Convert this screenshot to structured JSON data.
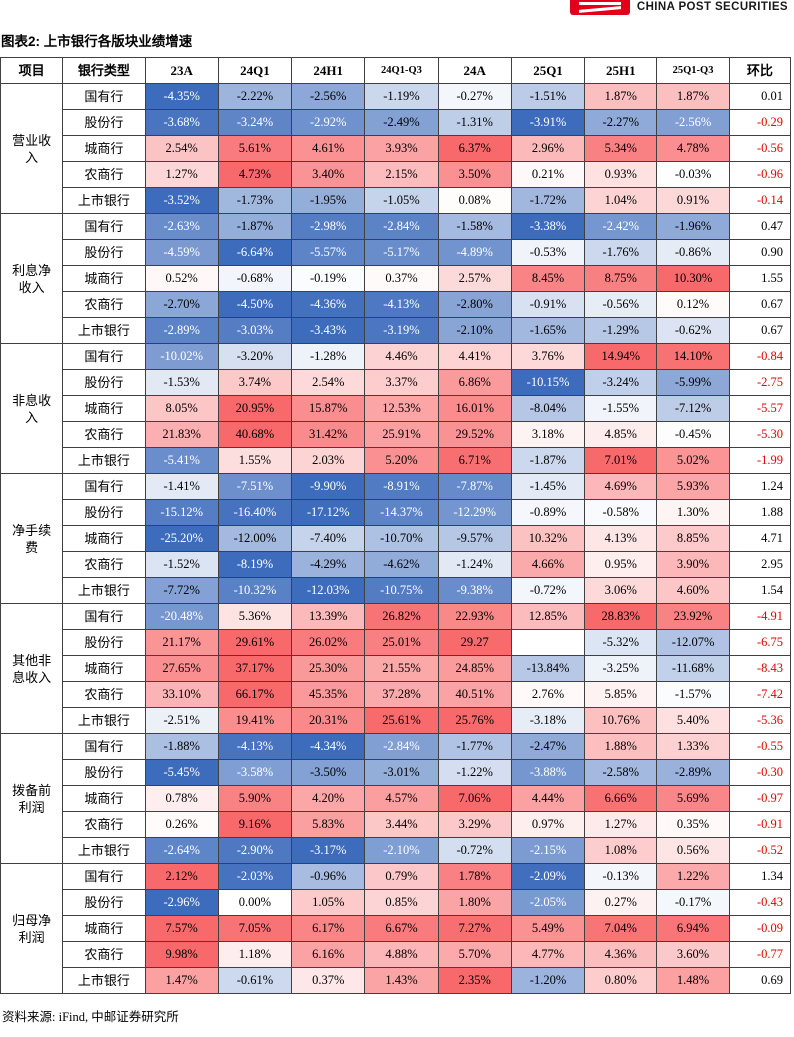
{
  "brand": {
    "name": "CHINA POST SECURITIES"
  },
  "title": "图表2: 上市银行各版块业绩增速",
  "source": "资料来源: iFind, 中邮证券研究所",
  "colors": {
    "brand_red": "#E3001B",
    "heat_positive": "#F8696B",
    "heat_negative": "#3E6CBC",
    "qoq_negative_text": "#E60000",
    "border": "#404040"
  },
  "table": {
    "columns": [
      "项目",
      "银行类型",
      "23A",
      "24Q1",
      "24H1",
      "24Q1-Q3",
      "24A",
      "25Q1",
      "25H1",
      "25Q1-Q3",
      "环比"
    ],
    "groups": [
      {
        "name": "营业收入",
        "rows": [
          {
            "bank": "国有行",
            "cells": [
              "-4.35%",
              "-2.22%",
              "-2.56%",
              "-1.19%",
              "-0.27%",
              "-1.51%",
              "1.87%",
              "1.87%"
            ],
            "qoq": "0.01"
          },
          {
            "bank": "股份行",
            "cells": [
              "-3.68%",
              "-3.24%",
              "-2.92%",
              "-2.49%",
              "-1.31%",
              "-3.91%",
              "-2.27%",
              "-2.56%"
            ],
            "qoq": "-0.29"
          },
          {
            "bank": "城商行",
            "cells": [
              "2.54%",
              "5.61%",
              "4.61%",
              "3.93%",
              "6.37%",
              "2.96%",
              "5.34%",
              "4.78%"
            ],
            "qoq": "-0.56"
          },
          {
            "bank": "农商行",
            "cells": [
              "1.27%",
              "4.73%",
              "3.40%",
              "2.15%",
              "3.50%",
              "0.21%",
              "0.93%",
              "-0.03%"
            ],
            "qoq": "-0.96"
          },
          {
            "bank": "上市银行",
            "cells": [
              "-3.52%",
              "-1.73%",
              "-1.95%",
              "-1.05%",
              "0.08%",
              "-1.72%",
              "1.04%",
              "0.91%"
            ],
            "qoq": "-0.14"
          }
        ]
      },
      {
        "name": "利息净收入",
        "rows": [
          {
            "bank": "国有行",
            "cells": [
              "-2.63%",
              "-1.87%",
              "-2.98%",
              "-2.84%",
              "-1.58%",
              "-3.38%",
              "-2.42%",
              "-1.96%"
            ],
            "qoq": "0.47"
          },
          {
            "bank": "股份行",
            "cells": [
              "-4.59%",
              "-6.64%",
              "-5.57%",
              "-5.17%",
              "-4.89%",
              "-0.53%",
              "-1.76%",
              "-0.86%"
            ],
            "qoq": "0.90"
          },
          {
            "bank": "城商行",
            "cells": [
              "0.52%",
              "-0.68%",
              "-0.19%",
              "0.37%",
              "2.57%",
              "8.45%",
              "8.75%",
              "10.30%"
            ],
            "qoq": "1.55"
          },
          {
            "bank": "农商行",
            "cells": [
              "-2.70%",
              "-4.50%",
              "-4.36%",
              "-4.13%",
              "-2.80%",
              "-0.91%",
              "-0.56%",
              "0.12%"
            ],
            "qoq": "0.67"
          },
          {
            "bank": "上市银行",
            "cells": [
              "-2.89%",
              "-3.03%",
              "-3.43%",
              "-3.19%",
              "-2.10%",
              "-1.65%",
              "-1.29%",
              "-0.62%"
            ],
            "qoq": "0.67"
          }
        ]
      },
      {
        "name": "非息收入",
        "rows": [
          {
            "bank": "国有行",
            "cells": [
              "-10.02%",
              "-3.20%",
              "-1.28%",
              "4.46%",
              "4.41%",
              "3.76%",
              "14.94%",
              "14.10%"
            ],
            "qoq": "-0.84"
          },
          {
            "bank": "股份行",
            "cells": [
              "-1.53%",
              "3.74%",
              "2.54%",
              "3.37%",
              "6.86%",
              "-10.15%",
              "-3.24%",
              "-5.99%"
            ],
            "qoq": "-2.75"
          },
          {
            "bank": "城商行",
            "cells": [
              "8.05%",
              "20.95%",
              "15.87%",
              "12.53%",
              "16.01%",
              "-8.04%",
              "-1.55%",
              "-7.12%"
            ],
            "qoq": "-5.57"
          },
          {
            "bank": "农商行",
            "cells": [
              "21.83%",
              "40.68%",
              "31.42%",
              "25.91%",
              "29.52%",
              "3.18%",
              "4.85%",
              "-0.45%"
            ],
            "qoq": "-5.30"
          },
          {
            "bank": "上市银行",
            "cells": [
              "-5.41%",
              "1.55%",
              "2.03%",
              "5.20%",
              "6.71%",
              "-1.87%",
              "7.01%",
              "5.02%"
            ],
            "qoq": "-1.99"
          }
        ]
      },
      {
        "name": "净手续费",
        "rows": [
          {
            "bank": "国有行",
            "cells": [
              "-1.41%",
              "-7.51%",
              "-9.90%",
              "-8.91%",
              "-7.87%",
              "-1.45%",
              "4.69%",
              "5.93%"
            ],
            "qoq": "1.24"
          },
          {
            "bank": "股份行",
            "cells": [
              "-15.12%",
              "-16.40%",
              "-17.12%",
              "-14.37%",
              "-12.29%",
              "-0.89%",
              "-0.58%",
              "1.30%"
            ],
            "qoq": "1.88"
          },
          {
            "bank": "城商行",
            "cells": [
              "-25.20%",
              "-12.00%",
              "-7.40%",
              "-10.70%",
              "-9.57%",
              "10.32%",
              "4.13%",
              "8.85%"
            ],
            "qoq": "4.71"
          },
          {
            "bank": "农商行",
            "cells": [
              "-1.52%",
              "-8.19%",
              "-4.29%",
              "-4.62%",
              "-1.24%",
              "4.66%",
              "0.95%",
              "3.90%"
            ],
            "qoq": "2.95"
          },
          {
            "bank": "上市银行",
            "cells": [
              "-7.72%",
              "-10.32%",
              "-12.03%",
              "-10.75%",
              "-9.38%",
              "-0.72%",
              "3.06%",
              "4.60%"
            ],
            "qoq": "1.54"
          }
        ]
      },
      {
        "name": "其他非息收入",
        "rows": [
          {
            "bank": "国有行",
            "cells": [
              "-20.48%",
              "5.36%",
              "13.39%",
              "26.82%",
              "22.93%",
              "12.85%",
              "28.83%",
              "23.92%"
            ],
            "qoq": "-4.91"
          },
          {
            "bank": "股份行",
            "cells": [
              "21.17%",
              "29.61%",
              "26.02%",
              "25.01%",
              "29.27",
              "",
              "-5.32%",
              "-12.07%"
            ],
            "qoq": "-6.75"
          },
          {
            "bank": "城商行",
            "cells": [
              "27.65%",
              "37.17%",
              "25.30%",
              "21.55%",
              "24.85%",
              "-13.84%",
              "-3.25%",
              "-11.68%"
            ],
            "qoq": "-8.43"
          },
          {
            "bank": "农商行",
            "cells": [
              "33.10%",
              "66.17%",
              "45.35%",
              "37.28%",
              "40.51%",
              "2.76%",
              "5.85%",
              "-1.57%"
            ],
            "qoq": "-7.42"
          },
          {
            "bank": "上市银行",
            "cells": [
              "-2.51%",
              "19.41%",
              "20.31%",
              "25.61%",
              "25.76%",
              "-3.18%",
              "10.76%",
              "5.40%"
            ],
            "qoq": "-5.36"
          }
        ]
      },
      {
        "name": "拨备前利润",
        "rows": [
          {
            "bank": "国有行",
            "cells": [
              "-1.88%",
              "-4.13%",
              "-4.34%",
              "-2.84%",
              "-1.77%",
              "-2.47%",
              "1.88%",
              "1.33%"
            ],
            "qoq": "-0.55"
          },
          {
            "bank": "股份行",
            "cells": [
              "-5.45%",
              "-3.58%",
              "-3.50%",
              "-3.01%",
              "-1.22%",
              "-3.88%",
              "-2.58%",
              "-2.89%"
            ],
            "qoq": "-0.30"
          },
          {
            "bank": "城商行",
            "cells": [
              "0.78%",
              "5.90%",
              "4.20%",
              "4.57%",
              "7.06%",
              "4.44%",
              "6.66%",
              "5.69%"
            ],
            "qoq": "-0.97"
          },
          {
            "bank": "农商行",
            "cells": [
              "0.26%",
              "9.16%",
              "5.83%",
              "3.44%",
              "3.29%",
              "0.97%",
              "1.27%",
              "0.35%"
            ],
            "qoq": "-0.91"
          },
          {
            "bank": "上市银行",
            "cells": [
              "-2.64%",
              "-2.90%",
              "-3.17%",
              "-2.10%",
              "-0.72%",
              "-2.15%",
              "1.08%",
              "0.56%"
            ],
            "qoq": "-0.52"
          }
        ]
      },
      {
        "name": "归母净利润",
        "rows": [
          {
            "bank": "国有行",
            "cells": [
              "2.12%",
              "-2.03%",
              "-0.96%",
              "0.79%",
              "1.78%",
              "-2.09%",
              "-0.13%",
              "1.22%"
            ],
            "qoq": "1.34"
          },
          {
            "bank": "股份行",
            "cells": [
              "-2.96%",
              "0.00%",
              "1.05%",
              "0.85%",
              "1.80%",
              "-2.05%",
              "0.27%",
              "-0.17%"
            ],
            "qoq": "-0.43"
          },
          {
            "bank": "城商行",
            "cells": [
              "7.57%",
              "7.05%",
              "6.17%",
              "6.67%",
              "7.27%",
              "5.49%",
              "7.04%",
              "6.94%"
            ],
            "qoq": "-0.09"
          },
          {
            "bank": "农商行",
            "cells": [
              "9.98%",
              "1.18%",
              "6.16%",
              "4.88%",
              "5.70%",
              "4.77%",
              "4.36%",
              "3.60%"
            ],
            "qoq": "-0.77"
          },
          {
            "bank": "上市银行",
            "cells": [
              "1.47%",
              "-0.61%",
              "0.37%",
              "1.43%",
              "2.35%",
              "-1.20%",
              "0.80%",
              "1.48%"
            ],
            "qoq": "0.69"
          }
        ]
      }
    ]
  }
}
